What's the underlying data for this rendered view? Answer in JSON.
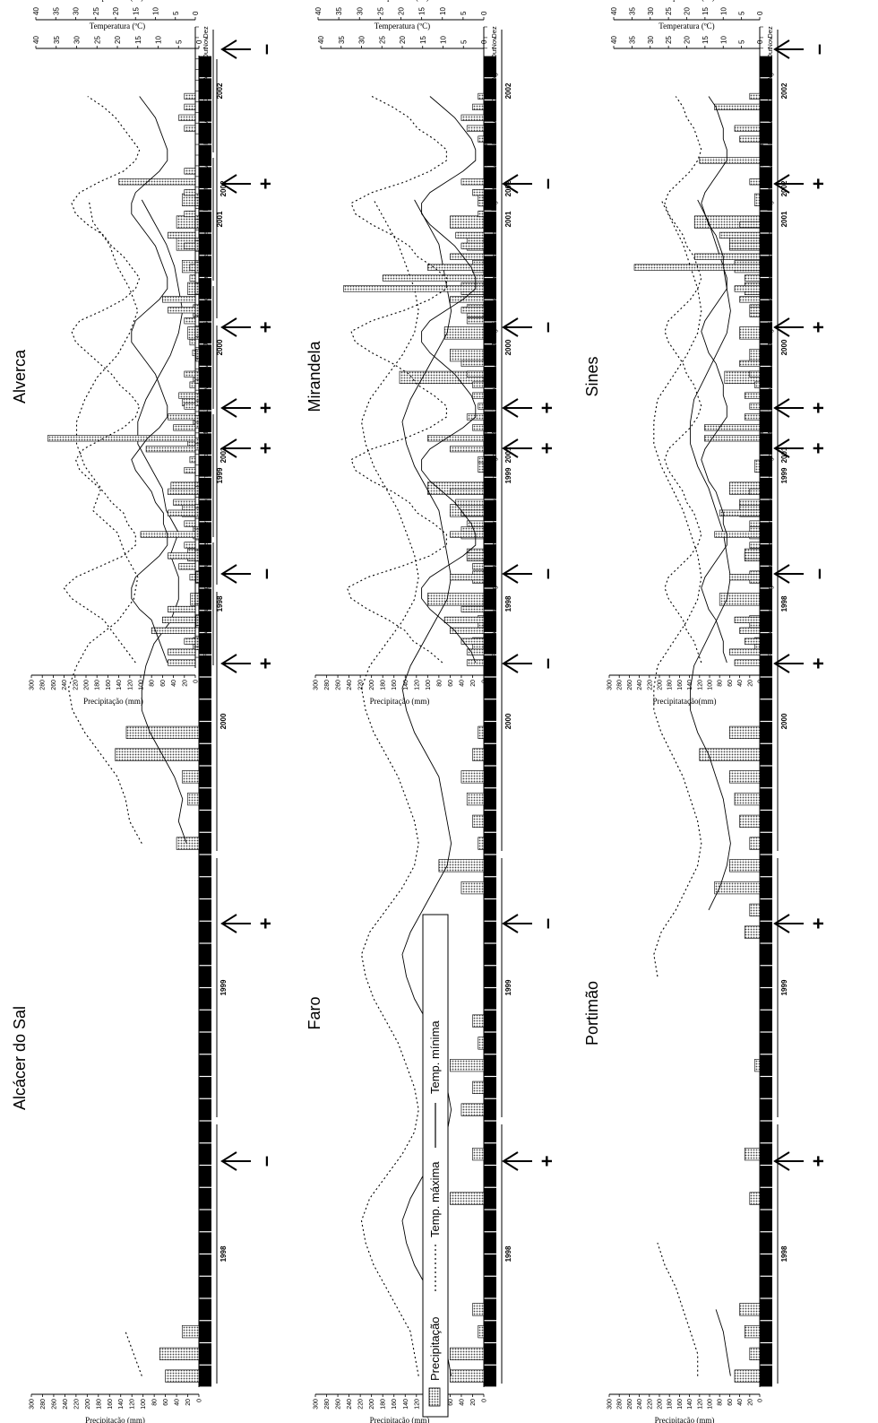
{
  "axis_labels": {
    "temperature": "Temperatura (ºC)",
    "precipitation": "Precipitação (mm)",
    "precipitation_variant": "Precipitatação(mm)"
  },
  "legend": {
    "precipitation": "Precipitação",
    "tmax": "Temp. máxima",
    "tmin": "Temp. mínima"
  },
  "years": [
    "1998",
    "1999",
    "2000",
    "2001",
    "2002"
  ],
  "month_labels": [
    "Jan",
    "Fev",
    "Mar",
    "Abr",
    "Mai",
    "Jun",
    "Jul",
    "Ago",
    "Set",
    "Out",
    "Nov",
    "Dez"
  ],
  "precip_ticks": [
    300,
    280,
    260,
    240,
    220,
    200,
    180,
    160,
    140,
    120,
    100,
    80,
    60,
    40,
    20,
    0
  ],
  "temp_ticks": [
    40,
    35,
    30,
    25,
    20,
    15,
    10,
    5,
    0
  ],
  "chart_data": [
    {
      "type": "bar+line",
      "station": "Alcácer do Sal",
      "marks": [
        "–",
        "+",
        "+",
        "+"
      ],
      "precip": [
        60,
        70,
        30,
        null,
        null,
        null,
        null,
        null,
        null,
        null,
        null,
        null,
        null,
        null,
        null,
        null,
        null,
        null,
        null,
        null,
        null,
        null,
        null,
        null,
        40,
        0,
        20,
        30,
        150,
        130,
        0,
        0,
        0,
        10,
        5,
        15,
        5,
        20,
        10,
        30,
        50,
        0,
        20,
        10,
        30,
        10,
        5,
        20,
        10,
        20,
        30,
        40,
        40,
        30,
        0,
        0,
        0,
        0,
        0,
        0
      ],
      "tmax": [
        14,
        16,
        18,
        null,
        null,
        null,
        null,
        null,
        null,
        null,
        null,
        null,
        null,
        null,
        null,
        null,
        null,
        null,
        null,
        null,
        null,
        null,
        null,
        null,
        14,
        17,
        18,
        20,
        24,
        28,
        31,
        32,
        30,
        27,
        20,
        16,
        15,
        18,
        20,
        26,
        24,
        28,
        30,
        30,
        28,
        25,
        20,
        17,
        15,
        17,
        20,
        22,
        26,
        27,
        null,
        null,
        null,
        null,
        null,
        null
      ],
      "tmin": [
        null,
        null,
        null,
        null,
        null,
        null,
        null,
        null,
        null,
        null,
        null,
        null,
        null,
        null,
        null,
        null,
        null,
        null,
        null,
        null,
        null,
        null,
        null,
        null,
        3,
        5,
        4,
        6,
        9,
        12,
        14,
        14,
        13,
        11,
        7,
        5,
        5,
        7,
        5,
        8,
        9,
        12,
        15,
        15,
        13,
        10,
        7,
        5,
        4,
        5,
        6,
        8,
        11,
        14,
        null,
        null,
        null,
        null,
        null,
        null
      ],
      "ylim_precip": [
        0,
        300
      ],
      "ylim_temp": [
        0,
        40
      ]
    },
    {
      "type": "bar+line",
      "station": "Faro",
      "marks": [
        "+",
        "–",
        "–",
        "+"
      ],
      "precip": [
        60,
        60,
        10,
        20,
        0,
        0,
        0,
        0,
        60,
        0,
        20,
        0,
        40,
        20,
        60,
        10,
        20,
        0,
        0,
        0,
        0,
        0,
        40,
        80,
        10,
        20,
        30,
        40,
        20,
        10,
        0,
        0,
        0,
        20,
        10,
        100,
        20,
        30,
        40,
        60,
        100,
        10,
        0,
        0,
        0,
        150,
        60,
        70,
        30,
        40,
        20,
        30,
        60,
        10,
        0,
        0,
        0,
        0,
        0,
        0
      ],
      "tmax": [
        16,
        17,
        18,
        21,
        24,
        27,
        29,
        30,
        28,
        24,
        20,
        17,
        16,
        17,
        19,
        21,
        24,
        27,
        29,
        30,
        28,
        24,
        20,
        17,
        16,
        17,
        19,
        21,
        24,
        27,
        29,
        30,
        28,
        24,
        20,
        17,
        16,
        17,
        19,
        21,
        24,
        27,
        29,
        30,
        28,
        24,
        20,
        17,
        16,
        17,
        19,
        21,
        24,
        27,
        null,
        null,
        null,
        null,
        null,
        null
      ],
      "tmin": [
        8,
        9,
        10,
        11,
        14,
        17,
        19,
        20,
        18,
        15,
        12,
        9,
        8,
        9,
        10,
        11,
        14,
        17,
        19,
        20,
        18,
        15,
        12,
        9,
        8,
        9,
        10,
        11,
        14,
        17,
        19,
        20,
        18,
        15,
        12,
        9,
        8,
        9,
        10,
        11,
        14,
        17,
        19,
        20,
        18,
        15,
        12,
        9,
        8,
        9,
        10,
        11,
        14,
        17,
        null,
        null,
        null,
        null,
        null,
        null
      ],
      "ylim_precip": [
        0,
        300
      ],
      "ylim_temp": [
        0,
        40
      ]
    },
    {
      "type": "bar+line",
      "station": "Portimão",
      "marks": [
        "+",
        "+",
        "+",
        "+"
      ],
      "precip": [
        50,
        20,
        30,
        40,
        0,
        0,
        0,
        0,
        20,
        0,
        30,
        0,
        0,
        0,
        10,
        0,
        0,
        0,
        0,
        0,
        30,
        20,
        90,
        60,
        20,
        40,
        50,
        60,
        120,
        60,
        0,
        0,
        0,
        10,
        20,
        80,
        20,
        30,
        20,
        40,
        60,
        10,
        0,
        0,
        0,
        70,
        20,
        40,
        20,
        30,
        50,
        60,
        130,
        10,
        0,
        0,
        0,
        0,
        0,
        0
      ],
      "tmax": [
        17,
        17,
        19,
        21,
        23,
        26,
        28,
        null,
        null,
        null,
        null,
        null,
        null,
        20,
        null,
        null,
        null,
        null,
        28,
        29,
        27,
        23,
        20,
        17,
        16,
        17,
        19,
        21,
        24,
        27,
        29,
        29,
        28,
        24,
        20,
        17,
        16,
        17,
        19,
        21,
        24,
        27,
        29,
        29,
        28,
        24,
        20,
        17,
        16,
        17,
        19,
        21,
        24,
        27,
        null,
        null,
        null,
        null,
        null,
        null
      ],
      "tmin": [
        8,
        9,
        10,
        12,
        null,
        null,
        null,
        null,
        null,
        null,
        null,
        null,
        null,
        null,
        null,
        null,
        null,
        null,
        null,
        null,
        null,
        14,
        11,
        9,
        8,
        9,
        10,
        12,
        14,
        17,
        19,
        19,
        18,
        15,
        12,
        9,
        8,
        9,
        10,
        12,
        14,
        17,
        19,
        19,
        18,
        15,
        12,
        9,
        8,
        9,
        10,
        12,
        14,
        17,
        null,
        null,
        null,
        null,
        null,
        null
      ],
      "ylim_precip": [
        0,
        300
      ],
      "ylim_temp": [
        0,
        40
      ]
    },
    {
      "type": "bar+line",
      "station": "Alverca",
      "marks": [
        "–",
        "+",
        "+",
        "+",
        "–"
      ],
      "precip": [
        50,
        50,
        20,
        80,
        60,
        50,
        0,
        0,
        10,
        30,
        50,
        20,
        100,
        20,
        50,
        40,
        50,
        0,
        20,
        10,
        90,
        270,
        40,
        50,
        20,
        30,
        10,
        20,
        0,
        5,
        10,
        0,
        20,
        50,
        60,
        0,
        10,
        10,
        0,
        20,
        50,
        0,
        20,
        0,
        20,
        140,
        20,
        0,
        0,
        0,
        20,
        30,
        20,
        20,
        0,
        0,
        0,
        0,
        0,
        0
      ],
      "tmax": [
        15,
        17,
        19,
        21,
        23,
        27,
        31,
        33,
        30,
        24,
        18,
        15,
        15,
        17,
        18,
        21,
        23,
        26,
        29,
        30,
        28,
        23,
        18,
        15,
        14,
        16,
        19,
        21,
        24,
        27,
        30,
        31,
        29,
        23,
        18,
        15,
        14,
        16,
        18,
        21,
        23,
        27,
        30,
        31,
        29,
        24,
        18,
        15,
        14,
        16,
        18,
        20,
        23,
        27,
        null,
        null,
        null,
        null,
        null,
        null
      ],
      "tmin": [
        7,
        8,
        9,
        10,
        11,
        14,
        16,
        16,
        15,
        12,
        9,
        7,
        7,
        8,
        8,
        10,
        11,
        13,
        15,
        16,
        14,
        12,
        9,
        7,
        7,
        8,
        9,
        10,
        12,
        14,
        16,
        16,
        15,
        12,
        9,
        7,
        7,
        8,
        9,
        10,
        12,
        14,
        16,
        16,
        15,
        12,
        9,
        7,
        7,
        8,
        9,
        10,
        12,
        14,
        null,
        null,
        null,
        null,
        null,
        null
      ],
      "ylim_precip": [
        0,
        300
      ],
      "ylim_temp": [
        0,
        40
      ]
    },
    {
      "type": "bar+line",
      "station": "Mirandela",
      "marks": [
        "–",
        "+",
        "–",
        "–"
      ],
      "precip": [
        30,
        30,
        40,
        60,
        70,
        40,
        0,
        0,
        60,
        20,
        30,
        0,
        60,
        30,
        40,
        50,
        60,
        0,
        0,
        10,
        60,
        100,
        20,
        30,
        10,
        20,
        20,
        30,
        40,
        0,
        0,
        0,
        30,
        40,
        60,
        250,
        180,
        100,
        60,
        40,
        50,
        0,
        10,
        10,
        20,
        40,
        0,
        0,
        0,
        10,
        30,
        40,
        20,
        10,
        0,
        0,
        0,
        0,
        0,
        0
      ],
      "tmax": [
        10,
        13,
        17,
        19,
        23,
        28,
        32,
        33,
        28,
        20,
        13,
        9,
        9,
        12,
        16,
        18,
        22,
        27,
        31,
        32,
        27,
        19,
        13,
        9,
        9,
        12,
        16,
        18,
        22,
        27,
        31,
        32,
        27,
        19,
        13,
        9,
        9,
        12,
        16,
        18,
        22,
        27,
        31,
        32,
        27,
        19,
        13,
        9,
        9,
        12,
        16,
        18,
        22,
        27,
        null,
        null,
        null,
        null,
        null,
        null
      ],
      "tmin": [
        2,
        3,
        5,
        7,
        10,
        13,
        15,
        15,
        13,
        9,
        5,
        2,
        2,
        3,
        5,
        7,
        10,
        13,
        15,
        15,
        13,
        9,
        5,
        2,
        2,
        3,
        5,
        7,
        10,
        13,
        15,
        15,
        13,
        9,
        5,
        2,
        2,
        3,
        5,
        7,
        10,
        13,
        15,
        15,
        13,
        9,
        5,
        2,
        2,
        3,
        5,
        7,
        10,
        13,
        null,
        null,
        null,
        null,
        null,
        null
      ],
      "ylim_precip": [
        0,
        300
      ],
      "ylim_temp": [
        0,
        40
      ]
    },
    {
      "type": "bar+line",
      "station": "Sines",
      "marks": [
        "–",
        "+",
        "+",
        "+",
        "–"
      ],
      "precip": [
        50,
        60,
        30,
        40,
        50,
        0,
        0,
        0,
        60,
        0,
        30,
        20,
        90,
        20,
        80,
        40,
        20,
        0,
        0,
        0,
        0,
        110,
        110,
        30,
        20,
        30,
        10,
        20,
        40,
        0,
        0,
        0,
        0,
        20,
        40,
        50,
        30,
        250,
        130,
        60,
        80,
        40,
        0,
        0,
        0,
        20,
        0,
        120,
        0,
        40,
        50,
        0,
        90,
        20,
        0,
        0,
        0,
        0,
        0,
        0
      ],
      "tmax": [
        16,
        17,
        18,
        20,
        21,
        23,
        25,
        26,
        25,
        22,
        19,
        17,
        16,
        17,
        18,
        20,
        21,
        23,
        25,
        26,
        25,
        22,
        19,
        17,
        16,
        17,
        18,
        20,
        21,
        23,
        25,
        26,
        25,
        22,
        19,
        17,
        16,
        17,
        18,
        20,
        21,
        23,
        25,
        26,
        25,
        22,
        19,
        17,
        16,
        17,
        18,
        20,
        21,
        23,
        null,
        null,
        null,
        null,
        null,
        null
      ],
      "tmin": [
        9,
        10,
        10,
        11,
        12,
        14,
        15,
        16,
        15,
        13,
        11,
        9,
        9,
        10,
        10,
        11,
        12,
        14,
        15,
        16,
        15,
        13,
        11,
        9,
        9,
        10,
        10,
        11,
        12,
        14,
        15,
        16,
        15,
        13,
        11,
        9,
        9,
        10,
        10,
        11,
        12,
        14,
        15,
        16,
        15,
        13,
        11,
        9,
        9,
        10,
        10,
        11,
        12,
        14,
        null,
        null,
        null,
        null,
        null,
        null
      ],
      "ylim_precip": [
        0,
        300
      ],
      "ylim_temp": [
        0,
        40
      ]
    }
  ]
}
